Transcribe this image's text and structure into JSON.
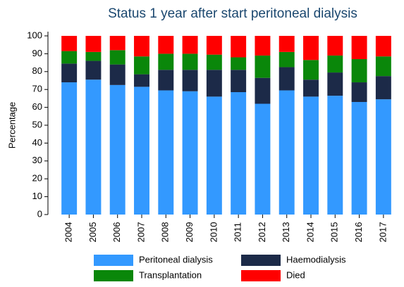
{
  "chart_data": {
    "type": "stacked_bar",
    "title": "Status 1 year after start peritoneal dialysis",
    "y_label": "Percentage",
    "categories": [
      "2004",
      "2005",
      "2006",
      "2007",
      "2008",
      "2009",
      "2010",
      "2011",
      "2012",
      "2013",
      "2014",
      "2015",
      "2016",
      "2017"
    ],
    "series": [
      {
        "name": "Peritoneal dialysis",
        "color": "#3399ff",
        "values": [
          74,
          75.5,
          72.5,
          71.5,
          69.5,
          69,
          66,
          68.5,
          62,
          69.5,
          66,
          66.5,
          63,
          64.5
        ]
      },
      {
        "name": "Haemodialysis",
        "color": "#1c2a48",
        "values": [
          10.5,
          10.5,
          11.5,
          7,
          11.5,
          12,
          15,
          12.5,
          14.5,
          13,
          9.5,
          13,
          11,
          13
        ]
      },
      {
        "name": "Transplantation",
        "color": "#0a870a",
        "values": [
          7,
          5,
          8,
          10,
          9,
          9,
          8.5,
          7,
          12.5,
          8.5,
          11,
          9.5,
          13,
          11
        ]
      },
      {
        "name": "Died",
        "color": "#ff0000",
        "values": [
          8.5,
          9,
          8,
          11.5,
          10,
          10,
          10.5,
          12,
          11,
          9,
          13.5,
          11,
          13,
          11.5
        ]
      }
    ],
    "ylim": [
      0,
      100
    ],
    "yticks": [
      0,
      10,
      20,
      30,
      40,
      50,
      60,
      70,
      80,
      90,
      100
    ],
    "grid": false,
    "legend": "bottom"
  }
}
